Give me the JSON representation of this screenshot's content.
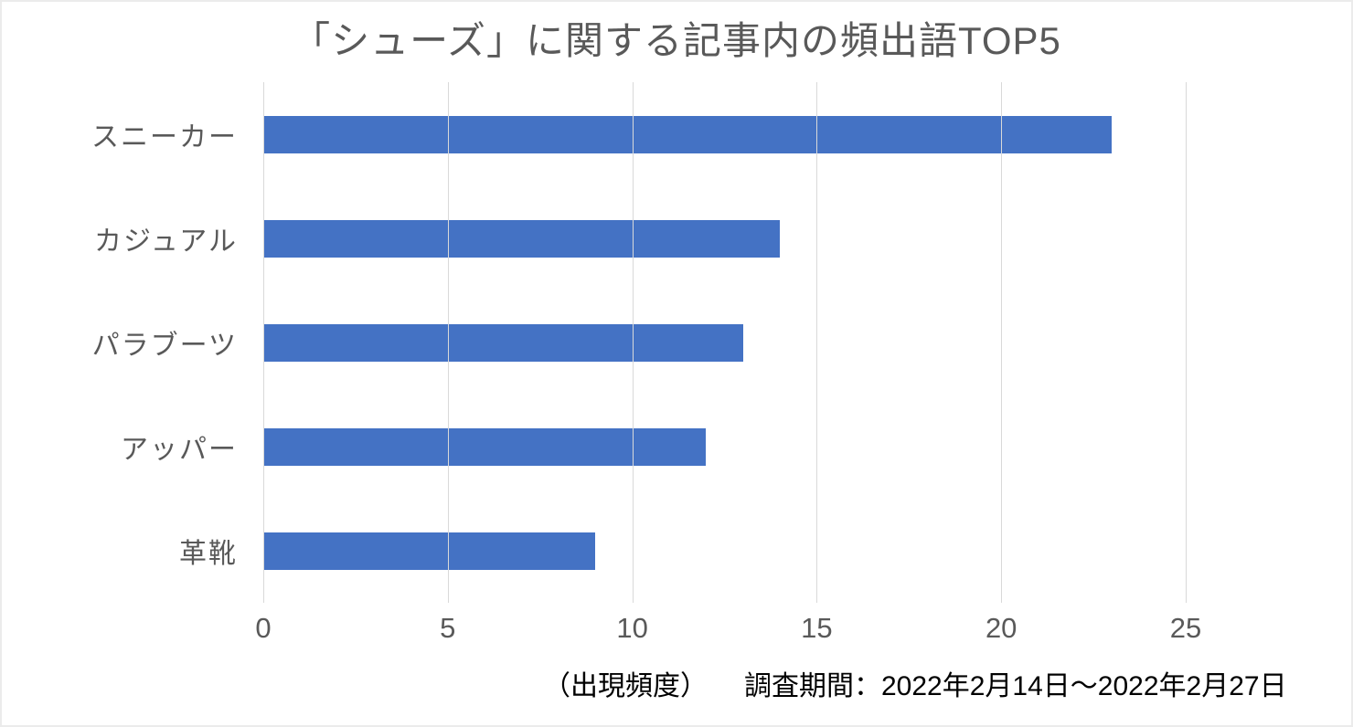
{
  "chart_data": {
    "type": "bar",
    "orientation": "horizontal",
    "title": "「シューズ」に関する記事内の頻出語TOP5",
    "categories": [
      "スニーカー",
      "カジュアル",
      "パラブーツ",
      "アッパー",
      "革靴"
    ],
    "values": [
      23,
      14,
      13,
      12,
      9
    ],
    "xlabel": "（出現頻度）",
    "ylabel": "",
    "xlim": [
      0,
      25
    ],
    "x_ticks": [
      0,
      5,
      10,
      15,
      20,
      25
    ],
    "grid": true,
    "legend_position": "none",
    "bar_color": "#4472C4",
    "gridline_color": "#d9d9d9",
    "text_color": "#595959"
  },
  "footer": {
    "axis_unit_label": "（出現頻度）",
    "survey_period": "調査期間：2022年2月14日～2022年2月27日"
  }
}
